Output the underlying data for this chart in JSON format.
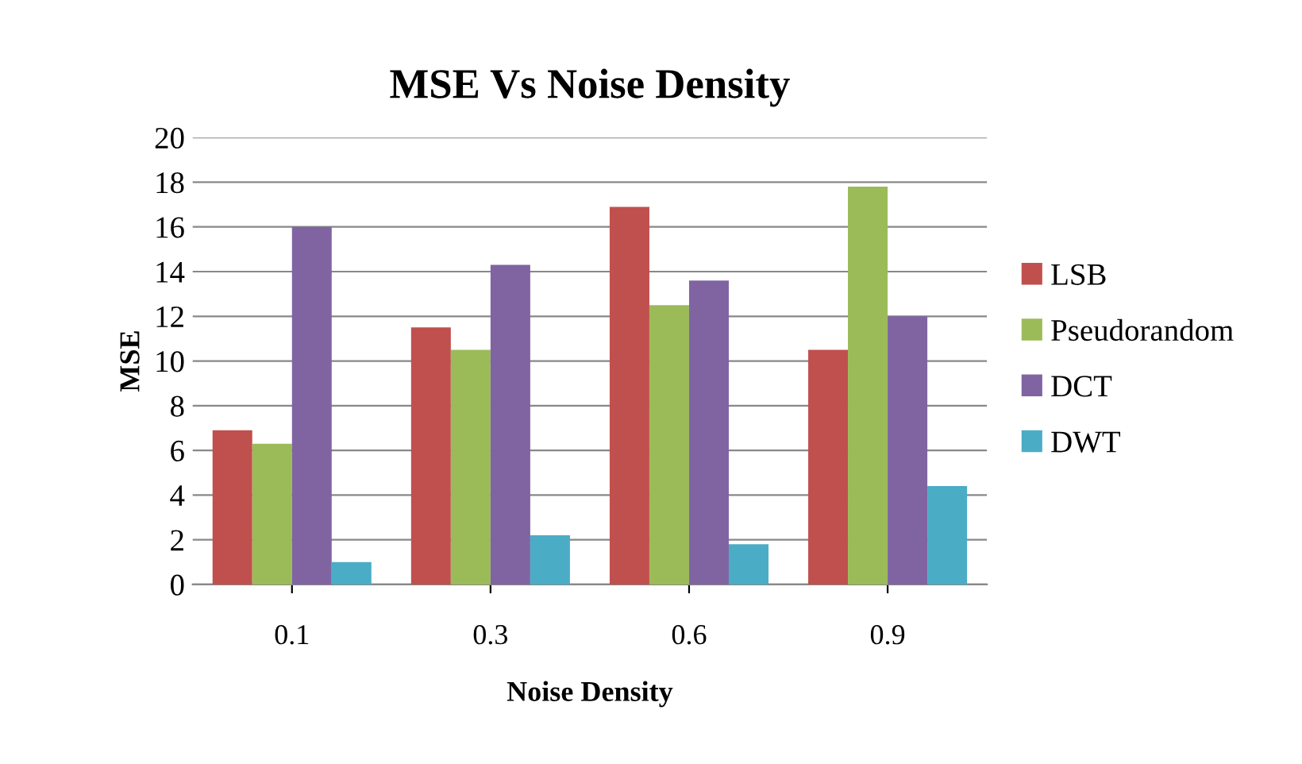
{
  "chart_data": {
    "type": "bar",
    "title": "MSE Vs Noise Density",
    "xlabel": "Noise Density",
    "ylabel": "MSE",
    "categories": [
      "0.1",
      "0.3",
      "0.6",
      "0.9"
    ],
    "series": [
      {
        "name": "LSB",
        "color": "#c0504d",
        "values": [
          6.9,
          11.5,
          16.9,
          10.5
        ]
      },
      {
        "name": "Pseudorandom",
        "color": "#9bbb59",
        "values": [
          6.3,
          10.5,
          12.5,
          17.8
        ]
      },
      {
        "name": "DCT",
        "color": "#8064a2",
        "values": [
          16.0,
          14.3,
          13.6,
          12.0
        ]
      },
      {
        "name": "DWT",
        "color": "#4bacc6",
        "values": [
          1.0,
          2.2,
          1.8,
          4.4
        ]
      }
    ],
    "ylim": [
      0,
      20
    ],
    "yticks": [
      0,
      2,
      4,
      6,
      8,
      10,
      12,
      14,
      16,
      18,
      20
    ],
    "grid": "y",
    "legend": "right"
  }
}
